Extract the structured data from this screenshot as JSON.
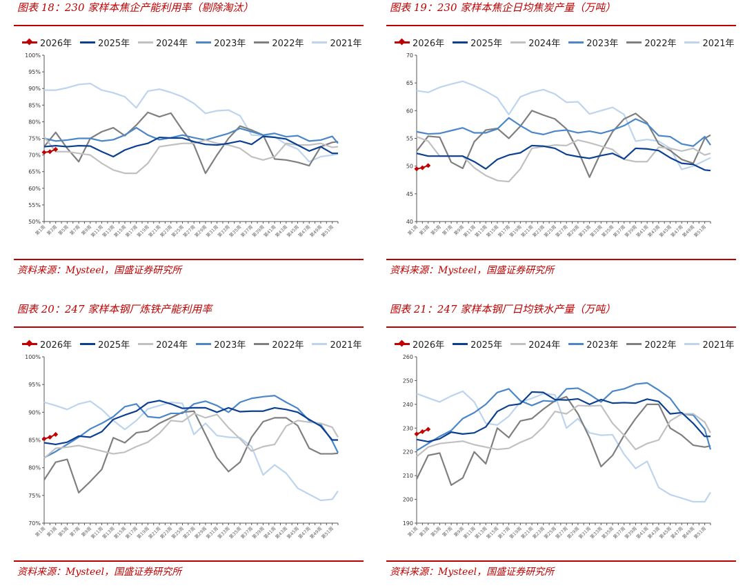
{
  "legend": [
    {
      "name": "2026年",
      "color": "#c00000"
    },
    {
      "name": "2025年",
      "color": "#0b3f91"
    },
    {
      "name": "2024年",
      "color": "#c0c0c0"
    },
    {
      "name": "2023年",
      "color": "#4a86c8"
    },
    {
      "name": "2022年",
      "color": "#7f7f7f"
    },
    {
      "name": "2021年",
      "color": "#bdd4ee"
    }
  ],
  "source": "资料来源：Mysteel，国盛证券研究所",
  "chart_data": [
    {
      "type": "line",
      "title": "图表 18：230 家样本焦企产能利用率（剔除淘汰）",
      "ylim": [
        50,
        100
      ],
      "ystep": 5,
      "yunit": "%",
      "x": [
        1,
        3,
        5,
        7,
        9,
        11,
        13,
        15,
        17,
        19,
        21,
        23,
        25,
        27,
        29,
        31,
        33,
        35,
        37,
        39,
        41,
        43,
        45,
        47,
        49,
        51,
        52
      ],
      "x_tick_labels": [
        "第1周",
        "第3周",
        "第5周",
        "第7周",
        "第9周",
        "第11周",
        "第13周",
        "第15周",
        "第17周",
        "第19周",
        "第21周",
        "第23周",
        "第25周",
        "第27周",
        "第29周",
        "第31周",
        "第33周",
        "第35周",
        "第37周",
        "第39周",
        "第41周",
        "第43周",
        "第45周",
        "第47周",
        "第49周",
        "第51周"
      ],
      "series": [
        {
          "name": "2026年",
          "x": [
            1,
            2,
            3
          ],
          "values": [
            70.8,
            71.0,
            71.7
          ]
        },
        {
          "name": "2025年",
          "values": [
            72.5,
            72.8,
            72.5,
            72.8,
            72.7,
            71.0,
            69.5,
            71.5,
            72.7,
            73.5,
            75.3,
            75.1,
            75.1,
            74.0,
            73.2,
            73.0,
            73.5,
            74.2,
            73.2,
            75.6,
            75.3,
            74.8,
            73.0,
            71.2,
            72.5,
            70.5,
            70.5
          ]
        },
        {
          "name": "2024年",
          "values": [
            75.5,
            71.0,
            71.0,
            70.5,
            70.0,
            67.5,
            65.5,
            64.5,
            64.5,
            67.5,
            72.5,
            73.0,
            73.5,
            73.5,
            74.5,
            73.5,
            73.0,
            72.0,
            69.5,
            68.5,
            69.5,
            73.5,
            73.0,
            73.0,
            73.5,
            72.3,
            72.5
          ]
        },
        {
          "name": "2023年",
          "values": [
            75.0,
            74.2,
            74.5,
            75.0,
            75.0,
            74.2,
            74.6,
            76.0,
            78.2,
            76.0,
            74.6,
            75.2,
            76.0,
            75.2,
            74.5,
            75.5,
            76.5,
            78.0,
            77.0,
            76.0,
            76.5,
            75.5,
            75.8,
            74.2,
            74.5,
            75.6,
            73.5
          ]
        },
        {
          "name": "2022年",
          "values": [
            72.5,
            76.8,
            72.0,
            68.0,
            75.0,
            77.0,
            78.2,
            75.8,
            79.0,
            82.8,
            81.5,
            82.6,
            77.5,
            73.0,
            64.5,
            70.0,
            75.0,
            78.7,
            77.5,
            76.0,
            68.8,
            68.5,
            67.8,
            66.8,
            72.5,
            73.8,
            74.0
          ]
        },
        {
          "name": "2021年",
          "values": [
            89.5,
            89.5,
            90.2,
            91.2,
            91.5,
            89.5,
            88.7,
            87.5,
            84.2,
            89.2,
            89.8,
            88.8,
            87.5,
            85.5,
            82.5,
            83.3,
            83.5,
            81.8,
            76.0,
            75.8,
            75.5,
            73.2,
            71.8,
            68.0,
            69.5,
            70.0,
            70.3
          ]
        }
      ]
    },
    {
      "type": "line",
      "title": "图表 19：230 家样本焦企日均焦炭产量（万吨）",
      "ylim": [
        40,
        70
      ],
      "ystep": 5,
      "yunit": "",
      "x": [
        1,
        3,
        5,
        7,
        9,
        11,
        13,
        15,
        17,
        19,
        21,
        23,
        25,
        27,
        29,
        31,
        33,
        35,
        37,
        39,
        41,
        43,
        45,
        47,
        49,
        51,
        52
      ],
      "x_tick_labels": [
        "第1周",
        "第3周",
        "第5周",
        "第7周",
        "第9周",
        "第11周",
        "第13周",
        "第15周",
        "第17周",
        "第19周",
        "第21周",
        "第23周",
        "第25周",
        "第27周",
        "第29周",
        "第31周",
        "第33周",
        "第35周",
        "第37周",
        "第39周",
        "第41周",
        "第43周",
        "第45周",
        "第47周",
        "第49周",
        "第51周"
      ],
      "series": [
        {
          "name": "2026年",
          "x": [
            1,
            2,
            3
          ],
          "values": [
            49.5,
            49.7,
            50.1
          ]
        },
        {
          "name": "2025年",
          "values": [
            52.3,
            51.8,
            51.8,
            51.8,
            51.8,
            50.8,
            49.5,
            51.2,
            52.0,
            52.4,
            53.7,
            53.6,
            53.2,
            52.1,
            51.7,
            51.4,
            51.9,
            52.3,
            51.3,
            53.2,
            53.1,
            52.8,
            51.5,
            50.5,
            50.3,
            49.3,
            49.2
          ]
        },
        {
          "name": "2024年",
          "values": [
            55.3,
            54.5,
            51.8,
            51.8,
            51.8,
            49.7,
            48.3,
            47.4,
            47.2,
            49.5,
            53.2,
            53.5,
            53.8,
            53.7,
            54.7,
            54.2,
            53.6,
            53.0,
            51.2,
            50.8,
            50.8,
            53.4,
            53.2,
            52.7,
            53.2,
            52.0,
            52.3
          ]
        },
        {
          "name": "2023年",
          "values": [
            56.2,
            55.8,
            55.9,
            56.4,
            56.9,
            56.0,
            56.0,
            56.7,
            58.7,
            57.3,
            56.1,
            55.7,
            56.3,
            56.5,
            56.0,
            56.3,
            55.9,
            56.5,
            57.3,
            58.5,
            57.6,
            55.5,
            55.3,
            54.0,
            53.6,
            55.3,
            53.8
          ]
        },
        {
          "name": "2022年",
          "values": [
            52.7,
            55.4,
            55.2,
            50.7,
            49.6,
            54.4,
            56.5,
            56.8,
            55.0,
            57.2,
            60.0,
            59.2,
            58.5,
            56.7,
            52.8,
            48.0,
            52.5,
            56.2,
            58.5,
            59.5,
            57.8,
            54.0,
            52.8,
            51.2,
            50.5,
            55.0,
            55.6
          ]
        },
        {
          "name": "2021年",
          "values": [
            63.6,
            63.3,
            64.2,
            64.8,
            65.3,
            64.5,
            63.5,
            62.3,
            59.3,
            62.5,
            63.3,
            63.8,
            63.0,
            61.5,
            61.6,
            59.4,
            60.0,
            60.6,
            59.3,
            54.5,
            54.8,
            54.5,
            53.2,
            49.4,
            50.0,
            51.0,
            51.5
          ]
        }
      ]
    },
    {
      "type": "line",
      "title": "图表 20：247 家样本钢厂炼铁产能利用率",
      "ylim": [
        70,
        100
      ],
      "ystep": 5,
      "yunit": "%",
      "x": [
        1,
        3,
        5,
        7,
        9,
        11,
        13,
        15,
        17,
        19,
        21,
        23,
        25,
        27,
        29,
        31,
        33,
        35,
        37,
        39,
        41,
        43,
        45,
        47,
        49,
        51,
        52
      ],
      "x_tick_labels": [
        "第1周",
        "第3周",
        "第5周",
        "第7周",
        "第9周",
        "第11周",
        "第13周",
        "第15周",
        "第17周",
        "第19周",
        "第21周",
        "第23周",
        "第25周",
        "第27周",
        "第29周",
        "第31周",
        "第33周",
        "第35周",
        "第37周",
        "第39周",
        "第41周",
        "第43周",
        "第45周",
        "第47周",
        "第49周",
        "第51周"
      ],
      "series": [
        {
          "name": "2026年",
          "x": [
            1,
            2,
            3
          ],
          "values": [
            85.2,
            85.5,
            86.0
          ]
        },
        {
          "name": "2025年",
          "values": [
            84.5,
            84.2,
            84.6,
            85.7,
            85.5,
            86.5,
            88.7,
            89.5,
            90.2,
            91.7,
            92.1,
            91.5,
            90.7,
            90.8,
            90.8,
            90.0,
            90.8,
            90.1,
            90.2,
            90.2,
            90.8,
            90.5,
            90.0,
            88.7,
            87.5,
            85.0,
            85.0
          ]
        },
        {
          "name": "2024年",
          "values": [
            81.7,
            83.5,
            83.7,
            84.0,
            83.5,
            83.0,
            82.5,
            82.8,
            83.8,
            84.6,
            86.2,
            88.5,
            88.3,
            89.8,
            89.0,
            89.6,
            87.2,
            85.2,
            83.0,
            83.8,
            84.2,
            87.5,
            88.5,
            88.2,
            88.0,
            87.3,
            85.5
          ]
        },
        {
          "name": "2023年",
          "values": [
            81.8,
            82.9,
            84.2,
            85.5,
            87.0,
            88.0,
            89.2,
            91.0,
            91.5,
            89.2,
            89.0,
            89.8,
            89.8,
            91.5,
            92.0,
            91.2,
            90.0,
            91.8,
            92.5,
            92.8,
            93.0,
            91.8,
            90.7,
            88.5,
            87.8,
            84.8,
            82.7
          ]
        },
        {
          "name": "2022年",
          "values": [
            77.8,
            81.0,
            81.5,
            75.5,
            77.5,
            79.7,
            85.4,
            84.5,
            86.3,
            86.6,
            88.0,
            89.0,
            90.0,
            90.2,
            86.0,
            81.8,
            79.3,
            81.0,
            85.5,
            88.3,
            89.0,
            89.0,
            87.6,
            83.5,
            82.5,
            82.5,
            82.6
          ]
        },
        {
          "name": "2021年",
          "values": [
            91.8,
            91.2,
            90.5,
            91.5,
            92.0,
            90.5,
            88.5,
            86.9,
            88.5,
            90.6,
            91.2,
            91.8,
            91.6,
            86.0,
            88.0,
            85.8,
            85.5,
            85.4,
            83.8,
            78.7,
            80.5,
            79.0,
            76.3,
            75.2,
            74.1,
            74.3,
            75.8
          ]
        }
      ]
    },
    {
      "type": "line",
      "title": "图表 21：247 家样本钢厂日均铁水产量（万吨）",
      "ylim": [
        190,
        260
      ],
      "ystep": 10,
      "yunit": "",
      "x": [
        1,
        3,
        5,
        7,
        9,
        11,
        13,
        15,
        17,
        19,
        21,
        23,
        25,
        27,
        29,
        31,
        33,
        35,
        37,
        39,
        41,
        43,
        45,
        47,
        49,
        51,
        52
      ],
      "x_tick_labels": [
        "第1周",
        "第3周",
        "第5周",
        "第7周",
        "第9周",
        "第11周",
        "第13周",
        "第15周",
        "第17周",
        "第19周",
        "第21周",
        "第23周",
        "第25周",
        "第27周",
        "第29周",
        "第31周",
        "第33周",
        "第35周",
        "第37周",
        "第39周",
        "第41周",
        "第43周",
        "第45周",
        "第47周",
        "第49周",
        "第51周"
      ],
      "series": [
        {
          "name": "2026年",
          "x": [
            1,
            2,
            3
          ],
          "values": [
            227.5,
            228.5,
            229.5
          ]
        },
        {
          "name": "2025年",
          "values": [
            225.2,
            224.3,
            225.5,
            228.3,
            227.5,
            228.0,
            230.5,
            237.0,
            239.5,
            240.2,
            245.2,
            245.0,
            242.0,
            241.8,
            242.3,
            240.0,
            242.0,
            240.5,
            240.7,
            240.5,
            242.2,
            241.2,
            236.0,
            236.5,
            232.0,
            226.5,
            226.5
          ]
        },
        {
          "name": "2024年",
          "values": [
            218.0,
            222.0,
            223.5,
            224.0,
            224.5,
            223.0,
            222.0,
            221.0,
            221.5,
            224.0,
            226.0,
            230.5,
            237.0,
            236.0,
            239.5,
            239.3,
            239.5,
            232.0,
            227.0,
            221.0,
            223.5,
            225.0,
            233.0,
            236.0,
            236.0,
            232.5,
            228.0
          ]
        },
        {
          "name": "2023年",
          "values": [
            220.5,
            223.5,
            226.5,
            229.0,
            234.0,
            236.5,
            240.0,
            245.0,
            246.5,
            241.5,
            239.5,
            241.5,
            241.2,
            246.5,
            246.8,
            244.2,
            241.0,
            245.5,
            246.5,
            248.5,
            249.0,
            246.0,
            242.5,
            236.0,
            235.5,
            229.5,
            221.0
          ]
        },
        {
          "name": "2022年",
          "values": [
            208.5,
            218.5,
            219.5,
            206.0,
            209.0,
            220.0,
            215.0,
            230.0,
            226.0,
            233.0,
            234.0,
            238.0,
            241.5,
            243.2,
            236.0,
            226.0,
            213.8,
            218.5,
            227.0,
            234.0,
            240.0,
            240.0,
            230.0,
            227.0,
            222.8,
            222.0,
            222.5
          ]
        },
        {
          "name": "2021年",
          "values": [
            244.5,
            242.7,
            241.0,
            243.5,
            245.5,
            241.0,
            232.0,
            231.3,
            235.0,
            241.0,
            242.5,
            244.5,
            244.0,
            230.0,
            234.0,
            228.0,
            227.0,
            227.2,
            219.0,
            213.0,
            216.0,
            205.0,
            202.0,
            200.5,
            199.0,
            199.0,
            203.0
          ]
        }
      ]
    }
  ]
}
